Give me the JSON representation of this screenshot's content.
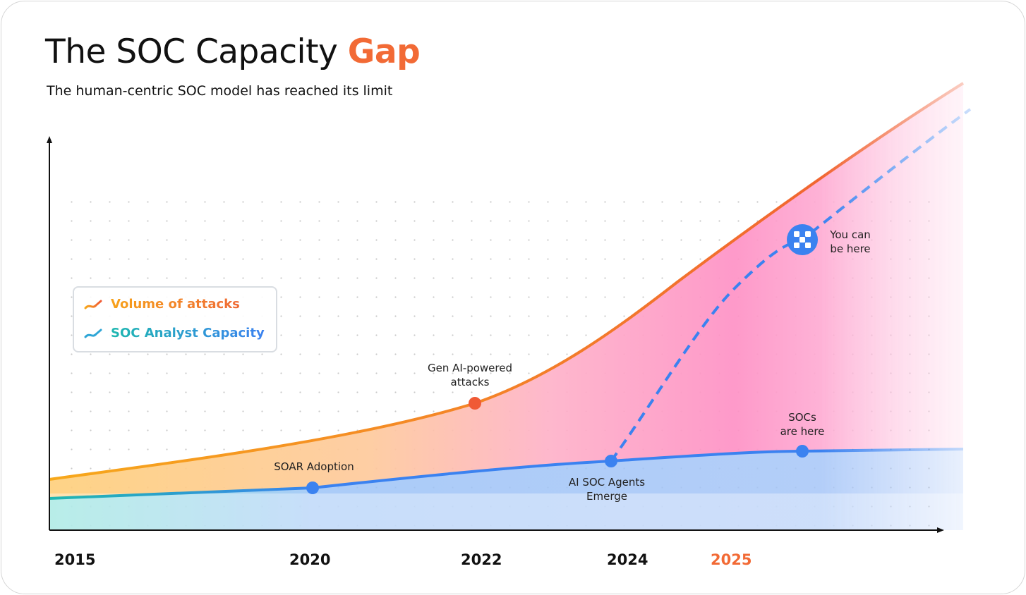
{
  "header": {
    "title_main": "The SOC Capacity",
    "title_accent": "Gap",
    "subtitle": "The human-centric SOC model has reached its limit"
  },
  "colors": {
    "accent": "#f26a35",
    "attacks_line": "#f5861f",
    "capacity_line": "#3b82f0",
    "gap_fill": "#ff8fc4"
  },
  "chart_data": {
    "type": "line",
    "title": "The SOC Capacity Gap",
    "subtitle": "The human-centric SOC model has reached its limit",
    "xlabel": "",
    "ylabel": "",
    "x_ticks": [
      "2015",
      "2020",
      "2022",
      "2024",
      "2025"
    ],
    "highlighted_tick": "2025",
    "grid": "dotted",
    "legend_placement": "middle-left",
    "legend": [
      "Volume of attacks",
      "SOC Analyst Capacity"
    ],
    "series": [
      {
        "name": "Volume of attacks",
        "trend": "accelerating growth",
        "color": "#f5861f"
      },
      {
        "name": "SOC Analyst Capacity",
        "trend": "slow growth, plateau",
        "color": "#3b82f0"
      }
    ],
    "projection": {
      "style": "dashed",
      "color": "#3b82f0",
      "from": "AI SOC Agents Emerge"
    },
    "annotations": [
      {
        "text_lines": [
          "SOAR Adoption"
        ],
        "year": "2020",
        "series": "SOC Analyst Capacity"
      },
      {
        "text_lines": [
          "Gen AI-powered",
          "attacks"
        ],
        "year": "2022",
        "series": "Volume of attacks"
      },
      {
        "text_lines": [
          "AI SOC Agents",
          "Emerge"
        ],
        "year": "2024",
        "series": "SOC Analyst Capacity"
      },
      {
        "text_lines": [
          "SOCs",
          "are here"
        ],
        "year": "2025+",
        "series": "SOC Analyst Capacity"
      },
      {
        "text_lines": [
          "You can",
          "be here"
        ],
        "year": "2025+",
        "series": "projection",
        "icon": "brand-logo-icon"
      }
    ]
  }
}
